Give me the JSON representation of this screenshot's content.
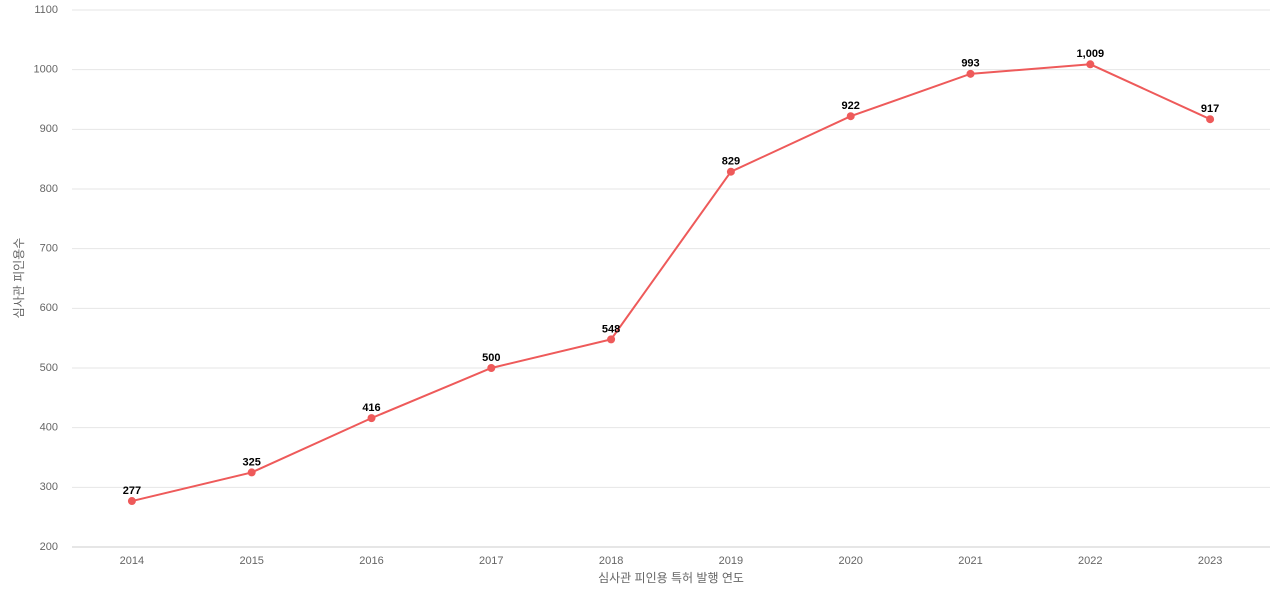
{
  "chart_data": {
    "type": "line",
    "y_label": "심사관 피인용수",
    "x_label": "심사관 피인용 특허 발행 연도",
    "categories": [
      "2014",
      "2015",
      "2016",
      "2017",
      "2018",
      "2019",
      "2020",
      "2021",
      "2022",
      "2023"
    ],
    "values": [
      277,
      325,
      416,
      500,
      548,
      829,
      922,
      993,
      1009,
      917
    ],
    "value_labels": [
      "277",
      "325",
      "416",
      "500",
      "548",
      "829",
      "922",
      "993",
      "1,009",
      "917"
    ],
    "color": "#ee5a5a",
    "ylim": [
      200,
      1100
    ],
    "yticks": [
      200,
      300,
      400,
      500,
      600,
      700,
      800,
      900,
      1000,
      1100
    ],
    "grid": true
  }
}
